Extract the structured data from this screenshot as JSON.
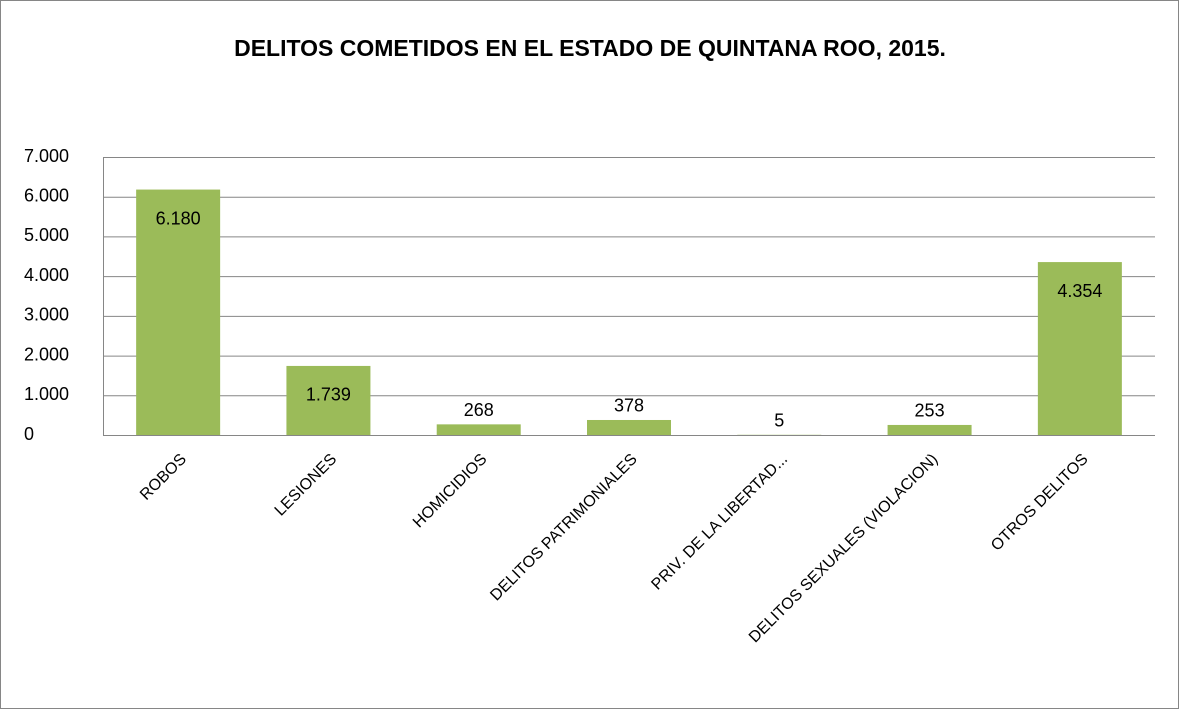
{
  "chart_data": {
    "type": "bar",
    "title": "DELITOS COMETIDOS EN EL ESTADO DE QUINTANA ROO, 2015.",
    "categories": [
      "ROBOS",
      "LESIONES",
      "HOMICIDIOS",
      "DELITOS PATRIMONIALES",
      "PRIV. DE LA LIBERTAD...",
      "DELITOS SEXUALES (VIOLACION)",
      "OTROS DELITOS"
    ],
    "values": [
      6180,
      1739,
      268,
      378,
      5,
      253,
      4354
    ],
    "value_labels": [
      "6.180",
      "1.739",
      "268",
      "378",
      "5",
      "253",
      "4.354"
    ],
    "color": "#9bbb59",
    "ylim": [
      0,
      7000
    ],
    "yticks": [
      0,
      {
        "value": 1000,
        "label": "1.000"
      },
      {
        "value": 2000,
        "label": "2.000"
      },
      {
        "value": 3000,
        "label": "3.000"
      },
      {
        "value": 4000,
        "label": "4.000"
      },
      {
        "value": 5000,
        "label": "5.000"
      },
      {
        "value": 6000,
        "label": "6.000"
      },
      {
        "value": 7000,
        "label": "7.000"
      }
    ],
    "grid": true
  }
}
